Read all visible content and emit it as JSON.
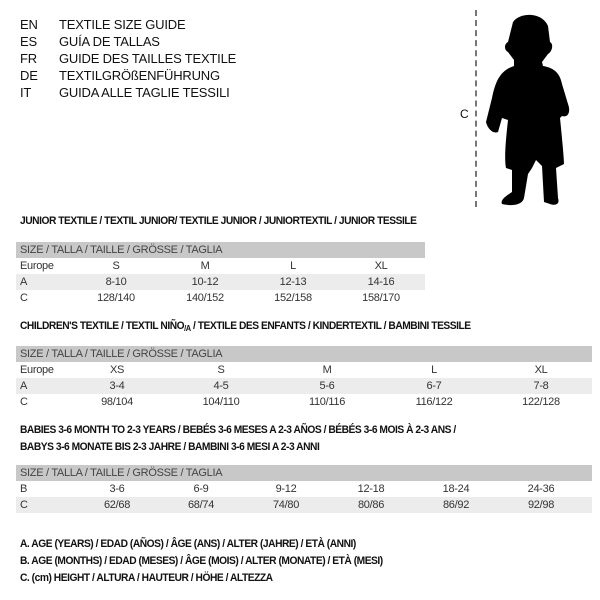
{
  "header": [
    {
      "code": "EN",
      "text": "TEXTILE SIZE GUIDE"
    },
    {
      "code": "ES",
      "text": "GUÍA DE TALLAS"
    },
    {
      "code": "FR",
      "text": "GUIDE DES TAILLES TEXTILE"
    },
    {
      "code": "DE",
      "text": "TEXTILGRÖßENFÜHRUNG"
    },
    {
      "code": "IT",
      "text": "GUIDA ALLE TAGLIE TESSILI"
    }
  ],
  "figure": {
    "measure_label": "C",
    "icon": "baby-silhouette"
  },
  "junior": {
    "title": "JUNIOR TEXTILE / TEXTIL JUNIOR/ TEXTILE JUNIOR / JUNIORTEXTIL / JUNIOR TESSILE",
    "size_header": "SIZE / TALLA / TAILLE / GRÖSSE / TAGLIA",
    "rows": [
      {
        "label": "Europe",
        "values": [
          "S",
          "M",
          "L",
          "XL"
        ]
      },
      {
        "label": "A",
        "values": [
          "8-10",
          "10-12",
          "12-13",
          "14-16"
        ]
      },
      {
        "label": "C",
        "values": [
          "128/140",
          "140/152",
          "152/158",
          "158/170"
        ]
      }
    ]
  },
  "children": {
    "title_a": "CHILDREN'S TEXTILE / TEXTIL NIÑO",
    "title_sub": "/A",
    "title_b": " / TEXTILE DES ENFANTS / KINDERTEXTIL / BAMBINI TESSILE",
    "size_header": "SIZE / TALLA / TAILLE / GRÖSSE / TAGLIA",
    "rows": [
      {
        "label": "Europe",
        "values": [
          "XS",
          "S",
          "M",
          "L",
          "XL"
        ]
      },
      {
        "label": "A",
        "values": [
          "3-4",
          "4-5",
          "5-6",
          "6-7",
          "7-8"
        ]
      },
      {
        "label": "C",
        "values": [
          "98/104",
          "104/110",
          "110/116",
          "116/122",
          "122/128"
        ]
      }
    ]
  },
  "babies": {
    "title_line1": "BABIES 3-6 MONTH TO 2-3 YEARS / BEBÉS 3-6 MESES A 2-3 AÑOS / BÉBÉS 3-6 MOIS À 2-3 ANS /",
    "title_line2": "BABYS 3-6 MONATE BIS 2-3 JAHRE / BAMBINI 3-6 MESI A 2-3 ANNI",
    "size_header": "SIZE / TALLA / TAILLE / GRÖSSE / TAGLIA",
    "rows": [
      {
        "label": "B",
        "values": [
          "3-6",
          "6-9",
          "9-12",
          "12-18",
          "18-24",
          "24-36"
        ]
      },
      {
        "label": "C",
        "values": [
          "62/68",
          "68/74",
          "74/80",
          "80/86",
          "86/92",
          "92/98"
        ]
      }
    ]
  },
  "legend": [
    "A. AGE (YEARS) / EDAD (AÑOS) / ÂGE (ANS) / ALTER (JAHRE) / ETÀ (ANNI)",
    "B. AGE (MONTHS) / EDAD (MESES) / ÂGE (MOIS) / ALTER (MONATE) / ETÀ (MESI)",
    "C. (cm) HEIGHT / ALTURA / HAUTEUR / HÖHE / ALTEZZA"
  ]
}
